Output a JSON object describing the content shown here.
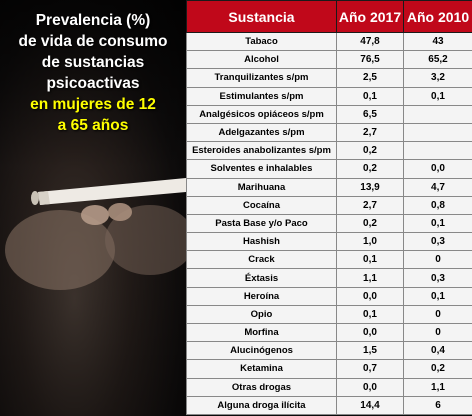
{
  "heading": {
    "line1": "Prevalencia (%)",
    "line2": "de vida de consumo",
    "line3": "de sustancias",
    "line4": "psicoactivas",
    "line5": "en mujeres  de 12",
    "line6": "a 65 años"
  },
  "table": {
    "headers": [
      "Sustancia",
      "Año 2017",
      "Año 2010"
    ],
    "rows": [
      [
        "Tabaco",
        "47,8",
        "43"
      ],
      [
        "Alcohol",
        "76,5",
        "65,2"
      ],
      [
        "Tranquilizantes s/pm",
        "2,5",
        "3,2"
      ],
      [
        "Estimulantes s/pm",
        "0,1",
        "0,1"
      ],
      [
        "Analgésicos opiáceos s/pm",
        "6,5",
        ""
      ],
      [
        "Adelgazantes s/pm",
        "2,7",
        ""
      ],
      [
        "Esteroides anabolizantes s/pm",
        "0,2",
        ""
      ],
      [
        "Solventes e inhalables",
        "0,2",
        "0,0"
      ],
      [
        "Marihuana",
        "13,9",
        "4,7"
      ],
      [
        "Cocaína",
        "2,7",
        "0,8"
      ],
      [
        "Pasta Base y/o Paco",
        "0,2",
        "0,1"
      ],
      [
        "Hashish",
        "1,0",
        "0,3"
      ],
      [
        "Crack",
        "0,1",
        "0"
      ],
      [
        "Éxtasis",
        "1,1",
        "0,3"
      ],
      [
        "Heroína",
        "0,0",
        "0,1"
      ],
      [
        "Opio",
        "0,1",
        "0"
      ],
      [
        "Morfina",
        "0,0",
        "0"
      ],
      [
        "Alucinógenos",
        "1,5",
        "0,4"
      ],
      [
        "Ketamina",
        "0,7",
        "0,2"
      ],
      [
        "Otras drogas",
        "0,0",
        "1,1"
      ],
      [
        "Alguna droga ilícita",
        "14,4",
        "6"
      ]
    ]
  }
}
